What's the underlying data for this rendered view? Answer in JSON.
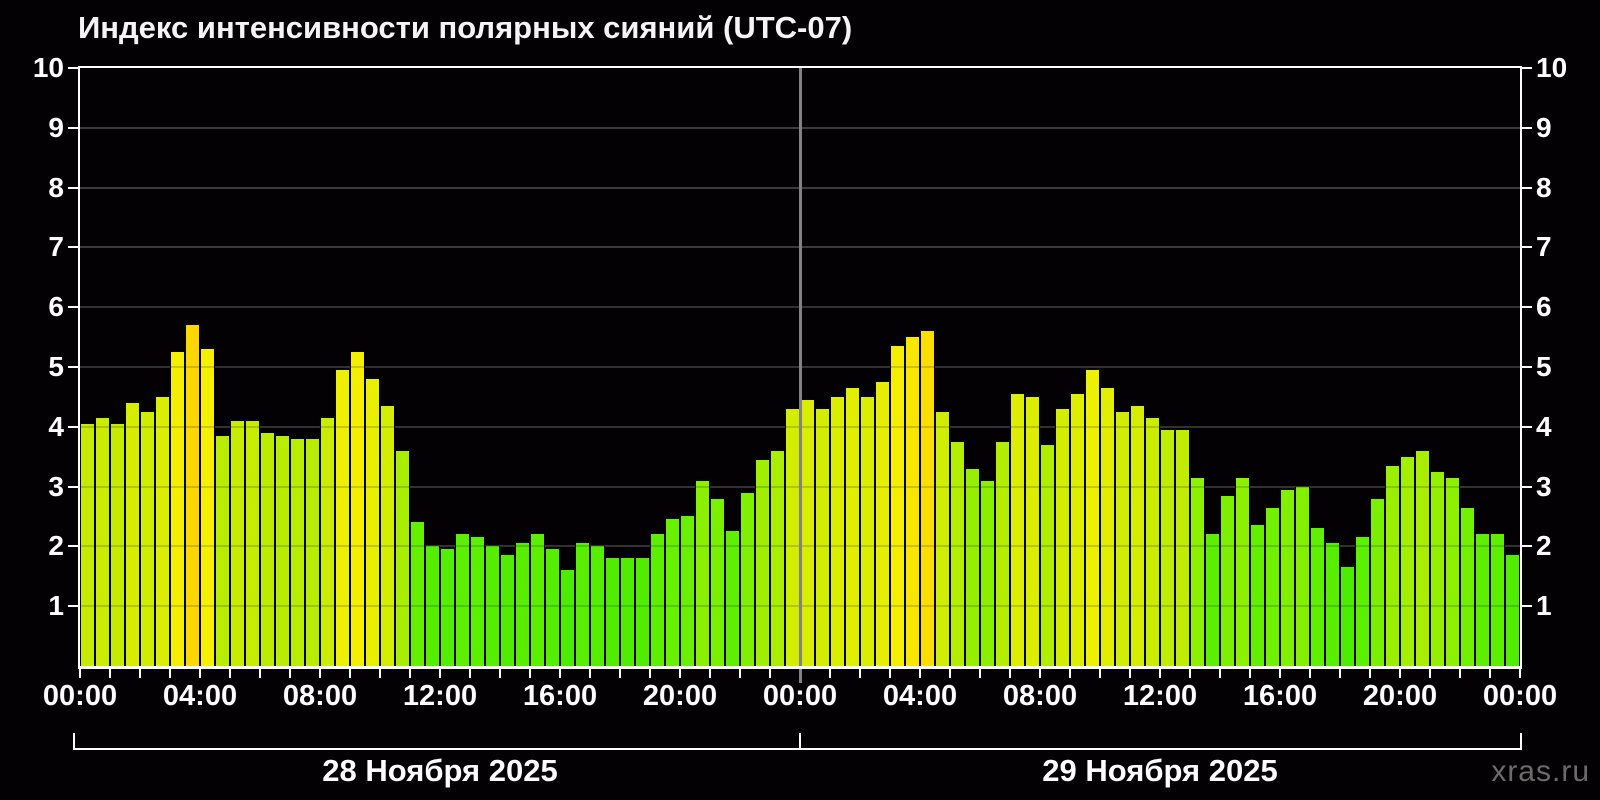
{
  "chart_data": {
    "type": "bar",
    "title": "Индекс интенсивности полярных сияний (UTC-07)",
    "ylabel": "",
    "xlabel": "",
    "ylim": [
      0,
      10
    ],
    "yticks": [
      1,
      2,
      3,
      4,
      5,
      6,
      7,
      8,
      9,
      10
    ],
    "grid": true,
    "bar_interval_minutes": 30,
    "days": [
      {
        "date_label": "28 Ноября 2025",
        "values": [
          4.05,
          4.15,
          4.05,
          4.4,
          4.25,
          4.5,
          5.25,
          5.7,
          5.3,
          3.85,
          4.1,
          4.1,
          3.9,
          3.85,
          3.8,
          3.8,
          4.15,
          4.95,
          5.25,
          4.8,
          4.35,
          3.6,
          2.4,
          2.0,
          1.95,
          2.2,
          2.15,
          2.0,
          1.85,
          2.05,
          2.2,
          1.95,
          1.6,
          2.05,
          2.0,
          1.8,
          1.8,
          1.8,
          2.2,
          2.45,
          2.5,
          3.1,
          2.8,
          2.25,
          2.9,
          3.45,
          3.6,
          4.3
        ]
      },
      {
        "date_label": "29 Ноября 2025",
        "values": [
          4.45,
          4.3,
          4.5,
          4.65,
          4.5,
          4.75,
          5.35,
          5.5,
          5.6,
          4.25,
          3.75,
          3.3,
          3.1,
          3.75,
          4.55,
          4.5,
          3.7,
          4.3,
          4.55,
          4.95,
          4.65,
          4.25,
          4.35,
          4.15,
          3.95,
          3.95,
          3.15,
          2.2,
          2.85,
          3.15,
          2.35,
          2.65,
          2.95,
          3.0,
          2.3,
          2.05,
          1.65,
          2.15,
          2.8,
          3.35,
          3.5,
          3.6,
          3.25,
          3.15,
          2.65,
          2.2,
          2.2,
          1.85
        ]
      }
    ],
    "xticks": [
      {
        "hour": 0,
        "label": "00:00"
      },
      {
        "hour": 4,
        "label": "04:00"
      },
      {
        "hour": 8,
        "label": "08:00"
      },
      {
        "hour": 12,
        "label": "12:00"
      },
      {
        "hour": 16,
        "label": "16:00"
      },
      {
        "hour": 20,
        "label": "20:00"
      },
      {
        "hour": 24,
        "label": "00:00"
      },
      {
        "hour": 28,
        "label": "04:00"
      },
      {
        "hour": 32,
        "label": "08:00"
      },
      {
        "hour": 36,
        "label": "12:00"
      },
      {
        "hour": 40,
        "label": "16:00"
      },
      {
        "hour": 44,
        "label": "20:00"
      },
      {
        "hour": 48,
        "label": "00:00"
      }
    ],
    "legend": null,
    "color_scale": {
      "stops": [
        [
          1.5,
          "#48ec00"
        ],
        [
          2.0,
          "#55ee00"
        ],
        [
          2.5,
          "#69f000"
        ],
        [
          3.0,
          "#84f000"
        ],
        [
          3.5,
          "#a3ef00"
        ],
        [
          4.0,
          "#c2ec00"
        ],
        [
          4.4,
          "#d7ed00"
        ],
        [
          4.8,
          "#e8ef00"
        ],
        [
          5.1,
          "#f2f100"
        ],
        [
          5.35,
          "#f6ee00"
        ],
        [
          5.55,
          "#f8e200"
        ],
        [
          5.75,
          "#fcd200"
        ]
      ]
    }
  },
  "colors": {
    "background": "#040104",
    "grid": "#3b3b3b",
    "axis": "#ffffff",
    "text": "#ffffff",
    "divider": "#828282",
    "watermark_text": "#6e6a6a"
  },
  "footer": {
    "watermark": "xras.ru"
  }
}
